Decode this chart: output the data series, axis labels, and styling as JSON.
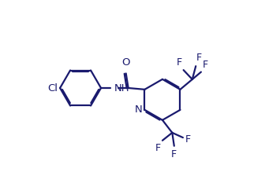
{
  "bg_color": "#ffffff",
  "bond_color": "#1a1a6e",
  "lw": 1.6,
  "dbo": 0.006,
  "fs": 9.5,
  "fig_w": 3.55,
  "fig_h": 2.24,
  "dpi": 100,
  "xlim": [
    0.0,
    1.0
  ],
  "ylim": [
    0.05,
    0.95
  ]
}
